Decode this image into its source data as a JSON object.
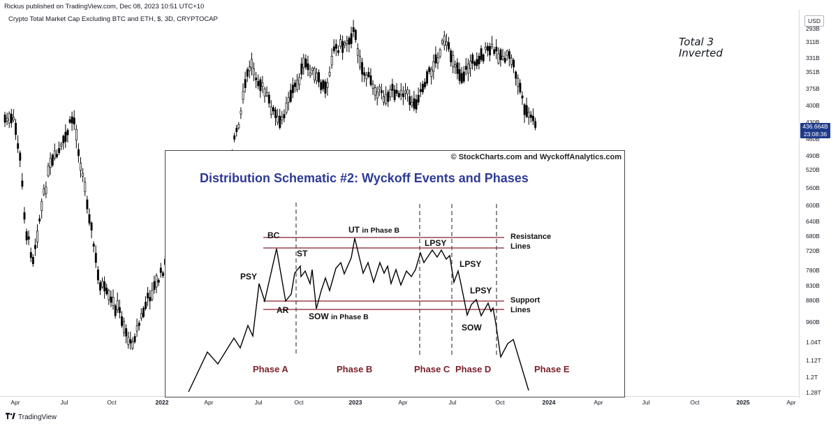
{
  "header": {
    "publish_line": "Rickus published on TradingView.com, Dec 08, 2023 10:51 UTC+10",
    "symbol_line": "Crypto Total Market Cap Excluding BTC and ETH, $, 3D, CRYPTOCAP"
  },
  "annotation": {
    "line1": "Total 3",
    "line2": "Inverted"
  },
  "price_axis": {
    "currency": "USD",
    "ticks": [
      "293B",
      "311B",
      "331B",
      "351B",
      "375B",
      "400B",
      "430B",
      "460B",
      "490B",
      "520B",
      "560B",
      "600B",
      "640B",
      "680B",
      "720B",
      "780B",
      "830B",
      "880B",
      "960B",
      "1.04T",
      "1.12T",
      "1.2T",
      "1.28T"
    ],
    "inverted": true,
    "scale": "log"
  },
  "last_price": {
    "value": "436.664B",
    "countdown": "23:08:36"
  },
  "time_axis": {
    "ticks": [
      {
        "label": "Apr",
        "bold": false
      },
      {
        "label": "Jul",
        "bold": false
      },
      {
        "label": "Oct",
        "bold": false
      },
      {
        "label": "2022",
        "bold": true
      },
      {
        "label": "Apr",
        "bold": false
      },
      {
        "label": "Jul",
        "bold": false
      },
      {
        "label": "Oct",
        "bold": false
      },
      {
        "label": "2023",
        "bold": true
      },
      {
        "label": "Apr",
        "bold": false
      },
      {
        "label": "Jul",
        "bold": false
      },
      {
        "label": "Oct",
        "bold": false
      },
      {
        "label": "2024",
        "bold": true
      },
      {
        "label": "Apr",
        "bold": false
      },
      {
        "label": "Jul",
        "bold": false
      },
      {
        "label": "Oct",
        "bold": false
      },
      {
        "label": "2025",
        "bold": true
      },
      {
        "label": "Apr",
        "bold": false
      }
    ]
  },
  "schematic": {
    "copyright": "© StockCharts.com and WyckoffAnalytics.com",
    "title": "Distribution Schematic #2: Wyckoff Events and Phases",
    "labels": {
      "bc": "BC",
      "psy": "PSY",
      "st": "ST",
      "ar": "AR",
      "ut": "UT",
      "ut_suffix": "in Phase B",
      "sow_b": "SOW",
      "sow_b_suffix": "in Phase B",
      "lpsy1": "LPSY",
      "lpsy2": "LPSY",
      "lpsy3": "LPSY",
      "sow": "SOW",
      "resistance1": "Resistance",
      "resistance2": "Lines",
      "support1": "Support",
      "support2": "Lines"
    },
    "phases": [
      "Phase A",
      "Phase B",
      "Phase C",
      "Phase D",
      "Phase E"
    ],
    "colors": {
      "title": "#2e3a96",
      "phase": "#7a1f2a",
      "level_lines": "#8b1a2b"
    }
  },
  "footer": {
    "brand": "TradingView"
  },
  "chart_data": {
    "type": "candlestick",
    "title": "Crypto Total Market Cap Excluding BTC and ETH, $, 3D, CRYPTOCAP",
    "x_range": [
      "2021-04",
      "2023-12"
    ],
    "y_scale": "log, inverted",
    "ylim": [
      "293B",
      "1.28T"
    ],
    "last_value": "436.664B",
    "path_x": [
      "2021-03",
      "2021-04",
      "2021-05",
      "2021-06",
      "2021-07",
      "2021-08",
      "2021-09",
      "2021-10",
      "2021-11",
      "2021-12",
      "2022-01",
      "2022-02",
      "2022-03",
      "2022-04",
      "2022-05",
      "2022-06",
      "2022-07",
      "2022-08",
      "2022-09",
      "2022-10",
      "2022-11",
      "2022-12",
      "2023-01",
      "2023-02",
      "2023-03",
      "2023-04",
      "2023-05",
      "2023-06",
      "2023-07",
      "2023-08",
      "2023-09",
      "2023-10",
      "2023-11",
      "2023-12"
    ],
    "path_close_B": [
      500,
      600,
      870,
      780,
      700,
      520,
      620,
      960,
      1040,
      820,
      760,
      600,
      700,
      780,
      560,
      380,
      395,
      360,
      360,
      350,
      310,
      300,
      340,
      370,
      350,
      370,
      350,
      310,
      320,
      325,
      330,
      380,
      420,
      436
    ]
  }
}
